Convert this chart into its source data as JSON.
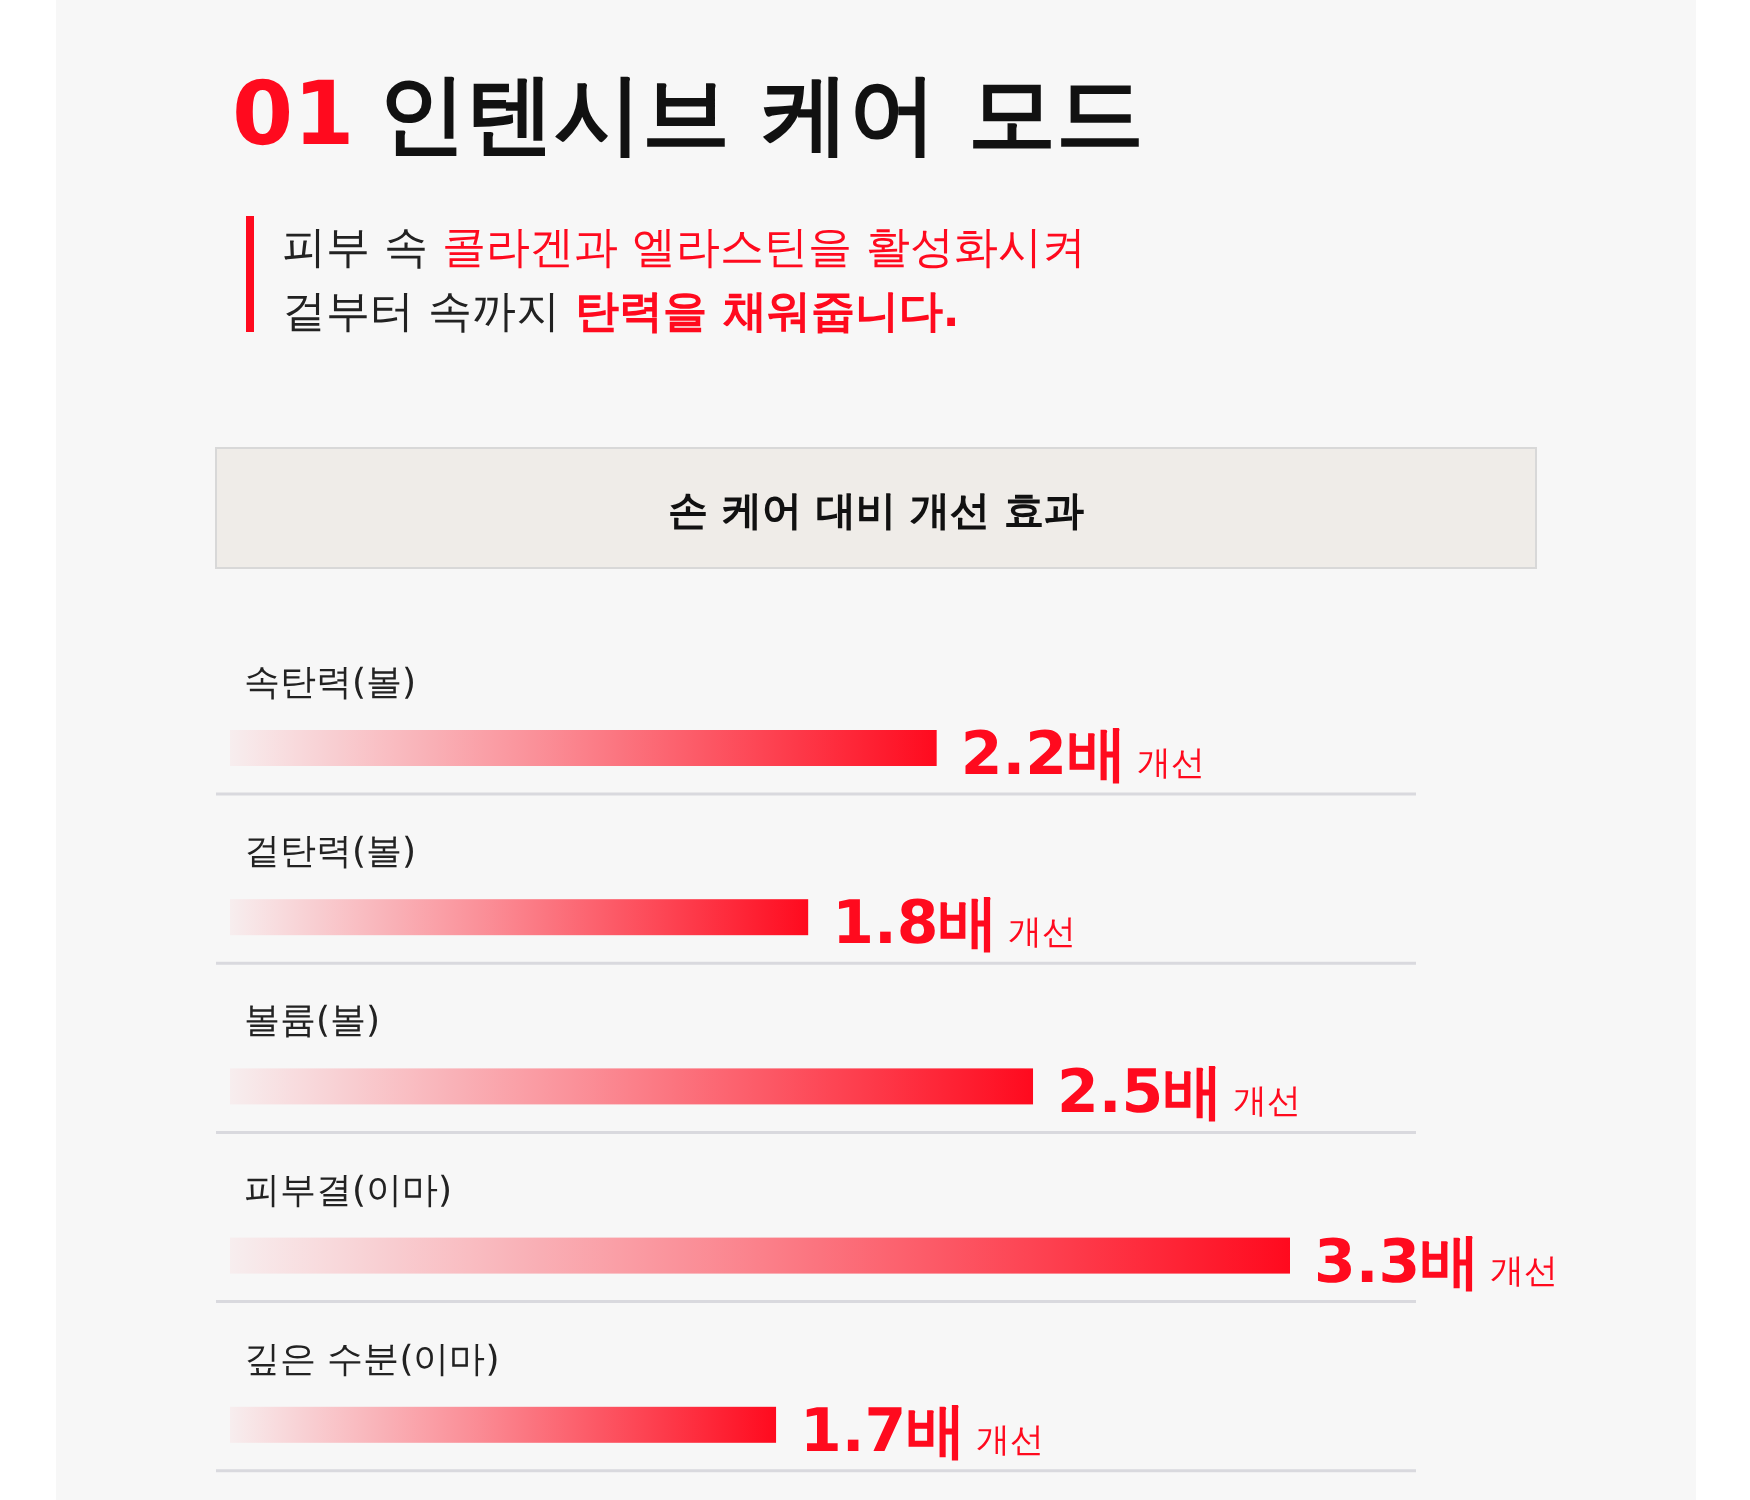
{
  "chart_data": {
    "type": "bar",
    "orientation": "horizontal",
    "title": "01 인텐시브 케어 모드",
    "subtitle": "피부 속 콜라겐과 엘라스틴을 활성화시켜\n겉부터 속까지 탄력을 채워줍니다.",
    "annotations": [
      "손 케어 대비 개선 효과"
    ],
    "categories": [
      "속탄력(볼)",
      "겉탄력(볼)",
      "볼륨(볼)",
      "피부결(이마)",
      "깊은 수분(이마)"
    ],
    "values": [
      2.2,
      1.8,
      2.5,
      3.3,
      1.7
    ],
    "color": "#ff0a1e",
    "value_labels": [
      "2.2배 개선",
      "1.8배 개선",
      "2.5배 개선",
      "3.3배 개선",
      "1.7배 개선"
    ]
  }
}
